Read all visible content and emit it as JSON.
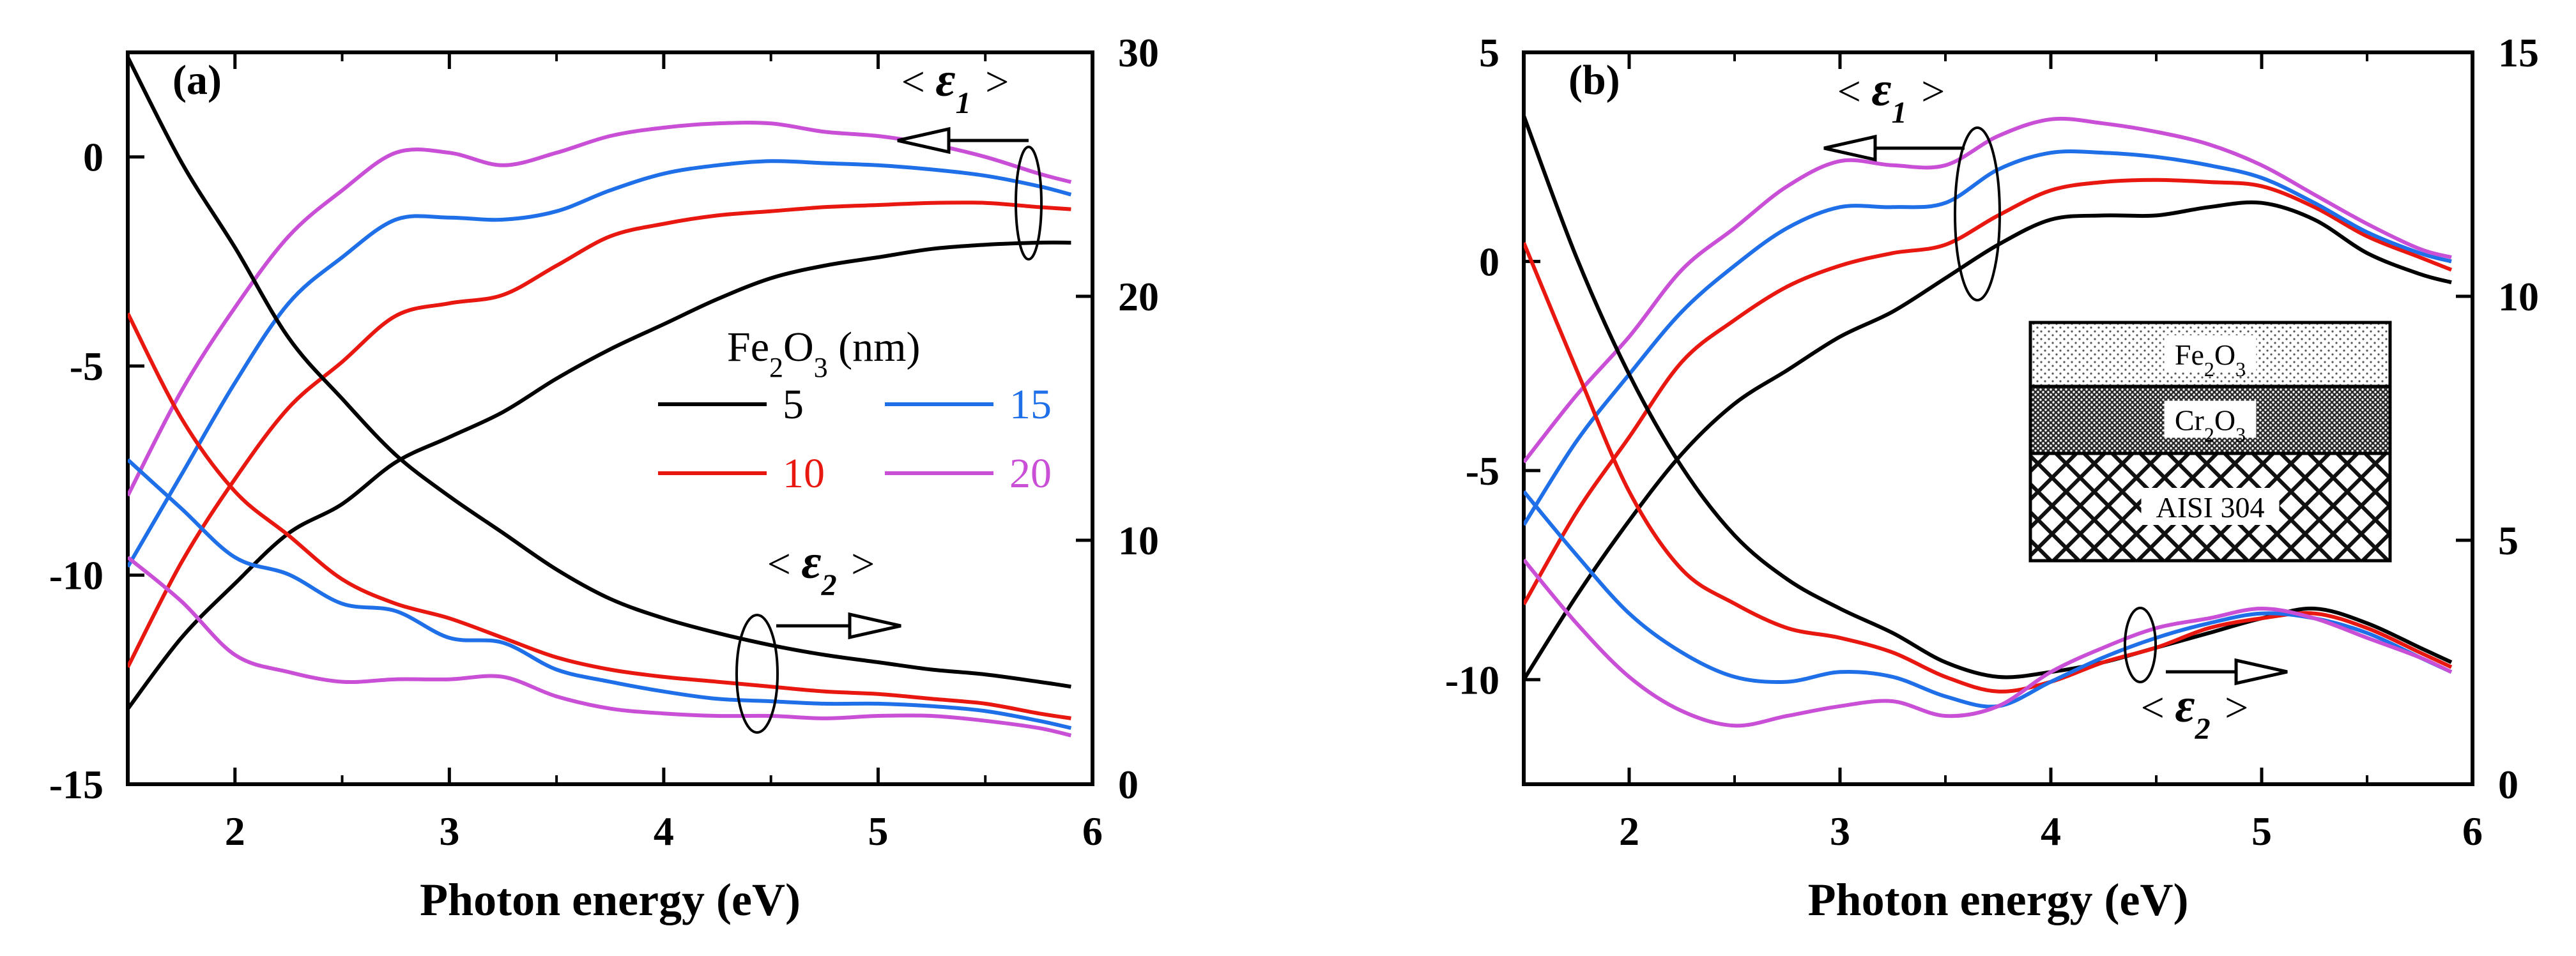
{
  "chart_data": [
    {
      "type": "line",
      "panel_label": "(a)",
      "xlabel": "Photon energy (eV)",
      "xlim": [
        1.5,
        6
      ],
      "xticks": [
        "2",
        "3",
        "4",
        "5",
        "6"
      ],
      "y1lim": [
        -15,
        2.5
      ],
      "y1ticks": [
        "-15",
        "-10",
        "-5",
        "0"
      ],
      "y2lim": [
        0,
        30
      ],
      "y2ticks": [
        "0",
        "10",
        "20",
        "30"
      ],
      "legend": {
        "title": "Fe2O3 (nm)",
        "entries": [
          {
            "label": "5",
            "color": "#000000"
          },
          {
            "label": "15",
            "color": "#1e6fe8"
          },
          {
            "label": "10",
            "color": "#e8170f"
          },
          {
            "label": "20",
            "color": "#c94fd6"
          }
        ]
      },
      "annotations": {
        "eps1": "< ε1 >",
        "eps2": "< ε2 >"
      },
      "series": [
        {
          "name": "5 nm <ε1>",
          "thickness": "5",
          "axis": "left",
          "color": "#000000",
          "x": [
            1.5,
            1.75,
            2.0,
            2.25,
            2.5,
            2.75,
            3.0,
            3.25,
            3.5,
            3.75,
            4.0,
            4.25,
            4.5,
            4.75,
            5.0,
            5.25,
            5.5,
            5.75,
            5.9
          ],
          "y": [
            -13.2,
            -11.5,
            -10.2,
            -9.0,
            -8.3,
            -7.3,
            -6.7,
            -6.1,
            -5.3,
            -4.6,
            -4.0,
            -3.4,
            -2.9,
            -2.6,
            -2.4,
            -2.2,
            -2.1,
            -2.05,
            -2.05
          ]
        },
        {
          "name": "10 nm <ε1>",
          "thickness": "10",
          "axis": "left",
          "color": "#e8170f",
          "x": [
            1.5,
            1.75,
            2.0,
            2.25,
            2.5,
            2.75,
            3.0,
            3.25,
            3.5,
            3.75,
            4.0,
            4.25,
            4.5,
            4.75,
            5.0,
            5.25,
            5.5,
            5.75,
            5.9
          ],
          "y": [
            -12.2,
            -9.7,
            -7.7,
            -6.0,
            -4.9,
            -3.8,
            -3.5,
            -3.3,
            -2.6,
            -1.9,
            -1.6,
            -1.4,
            -1.3,
            -1.2,
            -1.15,
            -1.1,
            -1.1,
            -1.2,
            -1.25
          ]
        },
        {
          "name": "15 nm <ε1>",
          "thickness": "15",
          "axis": "left",
          "color": "#1e6fe8",
          "x": [
            1.5,
            1.75,
            2.0,
            2.25,
            2.5,
            2.75,
            3.0,
            3.25,
            3.5,
            3.75,
            4.0,
            4.25,
            4.5,
            4.75,
            5.0,
            5.25,
            5.5,
            5.75,
            5.9
          ],
          "y": [
            -9.8,
            -7.6,
            -5.4,
            -3.5,
            -2.4,
            -1.5,
            -1.45,
            -1.5,
            -1.3,
            -0.8,
            -0.4,
            -0.2,
            -0.1,
            -0.15,
            -0.2,
            -0.3,
            -0.45,
            -0.7,
            -0.9
          ]
        },
        {
          "name": "20 nm <ε1>",
          "thickness": "20",
          "axis": "left",
          "color": "#c94fd6",
          "x": [
            1.5,
            1.75,
            2.0,
            2.25,
            2.5,
            2.75,
            3.0,
            3.25,
            3.5,
            3.75,
            4.0,
            4.25,
            4.5,
            4.75,
            5.0,
            5.25,
            5.5,
            5.75,
            5.9
          ],
          "y": [
            -8.1,
            -5.6,
            -3.6,
            -1.9,
            -0.8,
            0.1,
            0.1,
            -0.2,
            0.1,
            0.5,
            0.7,
            0.8,
            0.8,
            0.6,
            0.5,
            0.3,
            0.0,
            -0.4,
            -0.6
          ]
        },
        {
          "name": "5 nm <ε2>",
          "thickness": "5",
          "axis": "right",
          "color": "#000000",
          "x": [
            1.5,
            1.75,
            2.0,
            2.25,
            2.5,
            2.75,
            3.0,
            3.25,
            3.5,
            3.75,
            4.0,
            4.25,
            4.5,
            4.75,
            5.0,
            5.25,
            5.5,
            5.75,
            5.9
          ],
          "y": [
            29.8,
            25.5,
            22.0,
            18.3,
            15.8,
            13.5,
            11.8,
            10.3,
            8.8,
            7.6,
            6.8,
            6.2,
            5.7,
            5.3,
            5.0,
            4.7,
            4.5,
            4.2,
            4.0
          ]
        },
        {
          "name": "10 nm <ε2>",
          "thickness": "10",
          "axis": "right",
          "color": "#e8170f",
          "x": [
            1.5,
            1.75,
            2.0,
            2.25,
            2.5,
            2.75,
            3.0,
            3.25,
            3.5,
            3.75,
            4.0,
            4.25,
            4.5,
            4.75,
            5.0,
            5.25,
            5.5,
            5.75,
            5.9
          ],
          "y": [
            19.3,
            15.0,
            12.0,
            10.2,
            8.4,
            7.4,
            6.8,
            6.0,
            5.2,
            4.7,
            4.4,
            4.2,
            4.0,
            3.8,
            3.7,
            3.5,
            3.3,
            2.9,
            2.7
          ]
        },
        {
          "name": "15 nm <ε2>",
          "thickness": "15",
          "axis": "right",
          "color": "#1e6fe8",
          "x": [
            1.5,
            1.75,
            2.0,
            2.25,
            2.5,
            2.75,
            3.0,
            3.25,
            3.5,
            3.75,
            4.0,
            4.25,
            4.5,
            4.75,
            5.0,
            5.25,
            5.5,
            5.75,
            5.9
          ],
          "y": [
            13.3,
            11.3,
            9.3,
            8.6,
            7.4,
            7.1,
            6.0,
            5.8,
            4.7,
            4.2,
            3.8,
            3.5,
            3.4,
            3.3,
            3.3,
            3.2,
            3.0,
            2.6,
            2.3
          ]
        },
        {
          "name": "20 nm <ε2>",
          "thickness": "20",
          "axis": "right",
          "color": "#c94fd6",
          "x": [
            1.5,
            1.75,
            2.0,
            2.25,
            2.5,
            2.75,
            3.0,
            3.25,
            3.5,
            3.75,
            4.0,
            4.25,
            4.5,
            4.75,
            5.0,
            5.25,
            5.5,
            5.75,
            5.9
          ],
          "y": [
            9.3,
            7.5,
            5.3,
            4.6,
            4.2,
            4.3,
            4.3,
            4.4,
            3.6,
            3.1,
            2.9,
            2.8,
            2.8,
            2.7,
            2.8,
            2.8,
            2.6,
            2.3,
            2.0
          ]
        }
      ]
    },
    {
      "type": "line",
      "panel_label": "(b)",
      "xlabel": "Photon energy (eV)",
      "xlim": [
        1.5,
        6
      ],
      "xticks": [
        "2",
        "3",
        "4",
        "5",
        "6"
      ],
      "y1lim": [
        -12.5,
        5
      ],
      "y1ticks": [
        "-10",
        "-5",
        "0",
        "5"
      ],
      "y2lim": [
        0,
        15
      ],
      "y2ticks": [
        "0",
        "5",
        "10",
        "15"
      ],
      "annotations": {
        "eps1": "< ε1 >",
        "eps2": "< ε2 >"
      },
      "inset_layers": [
        "Fe2O3",
        "Cr2O3",
        "AISI 304"
      ],
      "series": [
        {
          "name": "5 nm <ε1>",
          "thickness": "5",
          "axis": "left",
          "color": "#000000",
          "x": [
            1.5,
            1.75,
            2.0,
            2.25,
            2.5,
            2.75,
            3.0,
            3.25,
            3.5,
            3.75,
            4.0,
            4.25,
            4.5,
            4.75,
            5.0,
            5.25,
            5.5,
            5.75,
            5.9
          ],
          "y": [
            -10.0,
            -8.0,
            -6.2,
            -4.6,
            -3.4,
            -2.6,
            -1.8,
            -1.2,
            -0.4,
            0.4,
            1.0,
            1.1,
            1.1,
            1.3,
            1.4,
            1.0,
            0.2,
            -0.3,
            -0.5
          ]
        },
        {
          "name": "10 nm <ε1>",
          "thickness": "10",
          "axis": "left",
          "color": "#e8170f",
          "x": [
            1.5,
            1.75,
            2.0,
            2.25,
            2.5,
            2.75,
            3.0,
            3.25,
            3.5,
            3.75,
            4.0,
            4.25,
            4.5,
            4.75,
            5.0,
            5.25,
            5.5,
            5.75,
            5.9
          ],
          "y": [
            -8.2,
            -6.0,
            -4.2,
            -2.4,
            -1.4,
            -0.6,
            -0.1,
            0.2,
            0.4,
            1.1,
            1.7,
            1.9,
            1.95,
            1.9,
            1.8,
            1.3,
            0.6,
            0.1,
            -0.2
          ]
        },
        {
          "name": "15 nm <ε1>",
          "thickness": "15",
          "axis": "left",
          "color": "#1e6fe8",
          "x": [
            1.5,
            1.75,
            2.0,
            2.25,
            2.5,
            2.75,
            3.0,
            3.25,
            3.5,
            3.75,
            4.0,
            4.25,
            4.5,
            4.75,
            5.0,
            5.25,
            5.5,
            5.75,
            5.9
          ],
          "y": [
            -6.3,
            -4.3,
            -2.7,
            -1.2,
            -0.1,
            0.8,
            1.3,
            1.3,
            1.4,
            2.2,
            2.6,
            2.6,
            2.5,
            2.3,
            2.0,
            1.4,
            0.7,
            0.2,
            0.0
          ]
        },
        {
          "name": "20 nm <ε1>",
          "thickness": "20",
          "axis": "left",
          "color": "#c94fd6",
          "x": [
            1.5,
            1.75,
            2.0,
            2.25,
            2.5,
            2.75,
            3.0,
            3.25,
            3.5,
            3.75,
            4.0,
            4.25,
            4.5,
            4.75,
            5.0,
            5.25,
            5.5,
            5.75,
            5.9
          ],
          "y": [
            -4.8,
            -3.2,
            -1.8,
            -0.2,
            0.8,
            1.8,
            2.4,
            2.3,
            2.3,
            3.0,
            3.4,
            3.3,
            3.1,
            2.8,
            2.3,
            1.6,
            0.9,
            0.3,
            0.1
          ]
        },
        {
          "name": "5 nm <ε2>",
          "thickness": "5",
          "axis": "right",
          "color": "#000000",
          "x": [
            1.5,
            1.75,
            2.0,
            2.25,
            2.5,
            2.75,
            3.0,
            3.25,
            3.5,
            3.75,
            4.0,
            4.25,
            4.5,
            4.75,
            5.0,
            5.25,
            5.5,
            5.75,
            5.9
          ],
          "y": [
            13.7,
            10.8,
            8.4,
            6.5,
            5.1,
            4.2,
            3.6,
            3.1,
            2.5,
            2.2,
            2.3,
            2.5,
            2.8,
            3.1,
            3.4,
            3.6,
            3.3,
            2.8,
            2.5
          ]
        },
        {
          "name": "10 nm <ε2>",
          "thickness": "10",
          "axis": "right",
          "color": "#e8170f",
          "x": [
            1.5,
            1.75,
            2.0,
            2.25,
            2.5,
            2.75,
            3.0,
            3.25,
            3.5,
            3.75,
            4.0,
            4.25,
            4.5,
            4.75,
            5.0,
            5.25,
            5.5,
            5.75,
            5.9
          ],
          "y": [
            11.1,
            8.5,
            6.0,
            4.4,
            3.7,
            3.2,
            3.0,
            2.7,
            2.2,
            1.9,
            2.1,
            2.5,
            2.8,
            3.2,
            3.4,
            3.5,
            3.2,
            2.7,
            2.4
          ]
        },
        {
          "name": "15 nm <ε2>",
          "thickness": "15",
          "axis": "right",
          "color": "#1e6fe8",
          "x": [
            1.5,
            1.75,
            2.0,
            2.25,
            2.5,
            2.75,
            3.0,
            3.25,
            3.5,
            3.75,
            4.0,
            4.25,
            4.5,
            4.75,
            5.0,
            5.25,
            5.5,
            5.75,
            5.9
          ],
          "y": [
            6.0,
            4.7,
            3.5,
            2.7,
            2.2,
            2.1,
            2.3,
            2.2,
            1.8,
            1.6,
            2.1,
            2.6,
            3.0,
            3.3,
            3.5,
            3.4,
            3.1,
            2.6,
            2.3
          ]
        },
        {
          "name": "20 nm <ε2>",
          "thickness": "20",
          "axis": "right",
          "color": "#c94fd6",
          "x": [
            1.5,
            1.75,
            2.0,
            2.25,
            2.5,
            2.75,
            3.0,
            3.25,
            3.5,
            3.75,
            4.0,
            4.25,
            4.5,
            4.75,
            5.0,
            5.25,
            5.5,
            5.75,
            5.9
          ],
          "y": [
            4.6,
            3.3,
            2.2,
            1.5,
            1.2,
            1.4,
            1.6,
            1.7,
            1.4,
            1.6,
            2.3,
            2.8,
            3.2,
            3.4,
            3.6,
            3.4,
            3.0,
            2.6,
            2.3
          ]
        }
      ]
    }
  ]
}
